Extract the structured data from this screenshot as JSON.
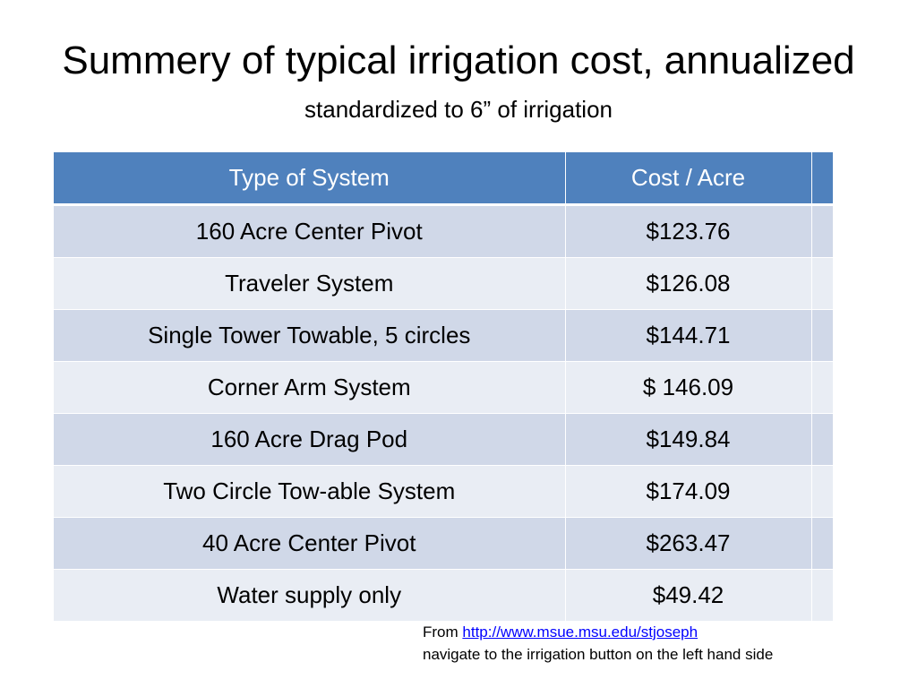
{
  "slide": {
    "title": "Summery of typical irrigation cost, annualized",
    "subtitle": "standardized to 6” of irrigation"
  },
  "table": {
    "headers": [
      "Type of System",
      "Cost / Acre",
      ""
    ],
    "rows": [
      {
        "system": "160 Acre Center Pivot",
        "cost": "$123.76"
      },
      {
        "system": "Traveler System",
        "cost": "$126.08"
      },
      {
        "system": "Single Tower Towable, 5 circles",
        "cost": "$144.71"
      },
      {
        "system": "Corner Arm System",
        "cost": "$ 146.09"
      },
      {
        "system": "160 Acre Drag Pod",
        "cost": "$149.84"
      },
      {
        "system": "Two Circle Tow-able System",
        "cost": "$174.09"
      },
      {
        "system": "40 Acre Center Pivot",
        "cost": "$263.47"
      },
      {
        "system": "Water supply only",
        "cost": "$49.42"
      }
    ],
    "colors": {
      "header_bg": "#4f81bd",
      "row_odd_bg": "#d0d8e8",
      "row_even_bg": "#e9edf4"
    }
  },
  "source": {
    "prefix": "From ",
    "link_text": "http://www.msue.msu.edu/stjoseph",
    "note": "navigate to the irrigation button on the left hand side",
    "link_color": "#0000ff"
  }
}
